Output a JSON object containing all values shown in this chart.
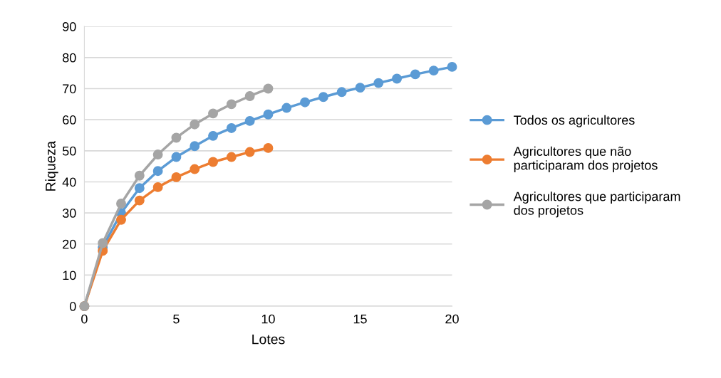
{
  "chart_data": {
    "type": "line",
    "xlabel": "Lotes",
    "ylabel": "Riqueza",
    "xlim": [
      0,
      20
    ],
    "xticks": [
      0,
      5,
      10,
      15,
      20
    ],
    "ylim": [
      0,
      90
    ],
    "yticks": [
      0,
      10,
      20,
      30,
      40,
      50,
      60,
      70,
      80,
      90
    ],
    "grid": "y",
    "legend": "right",
    "marker": "circle",
    "line_style": "solid",
    "series": [
      {
        "name": "Todos os agricultores",
        "color": "#5b9bd5",
        "x": [
          0,
          1,
          2,
          3,
          4,
          5,
          6,
          7,
          8,
          9,
          10,
          11,
          12,
          13,
          14,
          15,
          16,
          17,
          18,
          19,
          20
        ],
        "values": [
          0,
          19,
          30,
          38,
          43.5,
          48,
          51.5,
          54.8,
          57.3,
          59.6,
          61.7,
          63.8,
          65.6,
          67.3,
          68.9,
          70.3,
          71.8,
          73.2,
          74.6,
          75.8,
          77
        ]
      },
      {
        "name": "Agricultores que não\nparticiparam dos projetos",
        "color": "#ed7d31",
        "x": [
          0,
          1,
          2,
          3,
          4,
          5,
          6,
          7,
          8,
          9,
          10
        ],
        "values": [
          0,
          17.8,
          27.8,
          34,
          38.3,
          41.5,
          44.1,
          46.4,
          48,
          49.6,
          50.9
        ]
      },
      {
        "name": "Agricultores que participaram\ndos projetos",
        "color": "#a5a5a5",
        "x": [
          0,
          1,
          2,
          3,
          4,
          5,
          6,
          7,
          8,
          9,
          10
        ],
        "values": [
          0,
          20.3,
          33,
          42,
          48.8,
          54.2,
          58.5,
          62,
          65,
          67.6,
          70
        ]
      }
    ]
  }
}
